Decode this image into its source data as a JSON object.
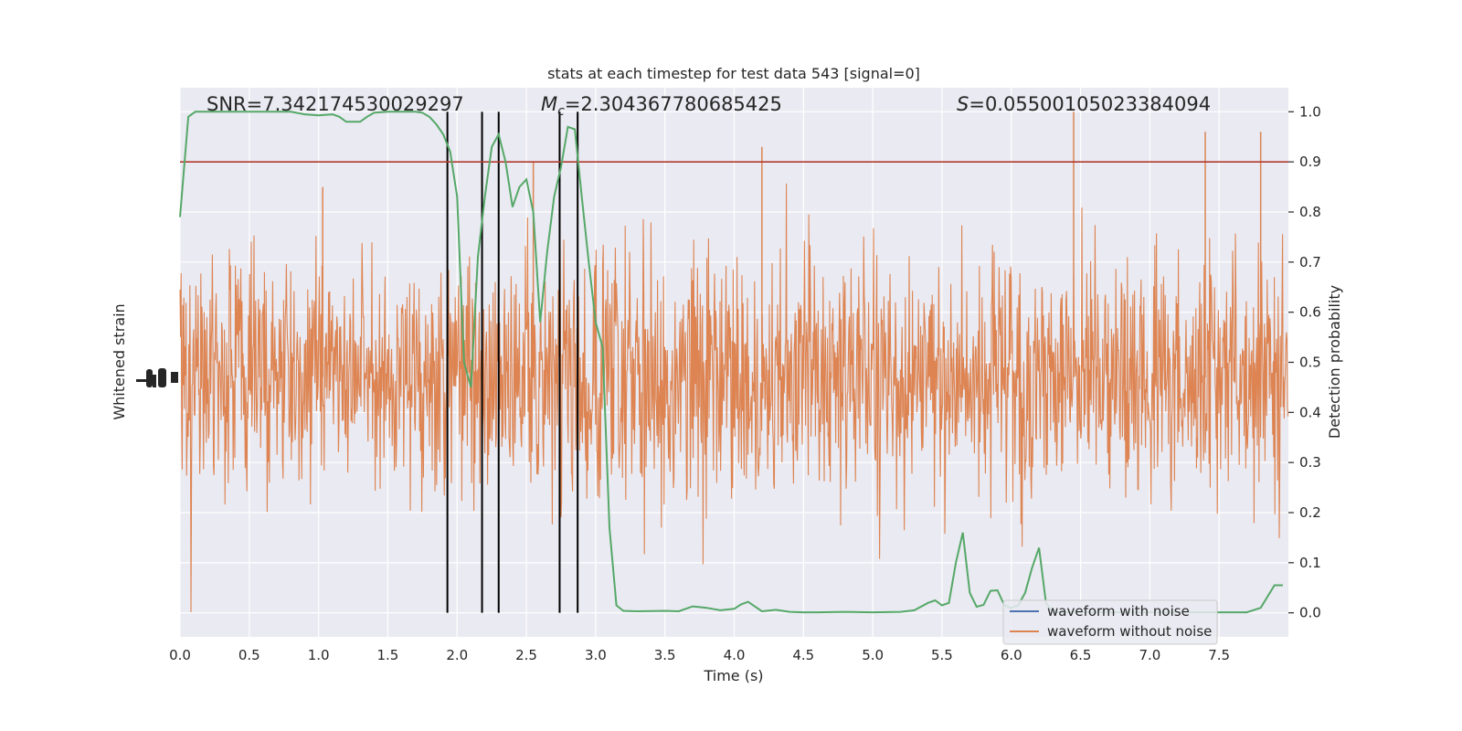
{
  "chart_data": {
    "type": "line",
    "title": "stats at each timestep for test data 543 [signal=0]",
    "xlabel": "Time (s)",
    "ylabel_left": "Whitened strain",
    "ylabel_right": "Detection probability",
    "xlim": [
      0.0,
      8.0
    ],
    "ylim_right": [
      -0.048,
      1.048
    ],
    "x_ticks": [
      "0.0",
      "0.5",
      "1.0",
      "1.5",
      "2.0",
      "2.5",
      "3.0",
      "3.5",
      "4.0",
      "4.5",
      "5.0",
      "5.5",
      "6.0",
      "6.5",
      "7.0",
      "7.5"
    ],
    "y_ticks_right": [
      "0.0",
      "0.1",
      "0.2",
      "0.3",
      "0.4",
      "0.5",
      "0.6",
      "0.7",
      "0.8",
      "0.9",
      "1.0"
    ],
    "annotations": {
      "snr": "SNR=7.342174530029297",
      "mc_symbol": "M",
      "mc_sub": "c",
      "mc_value": "=2.304367780685425",
      "s_symbol": "S",
      "s_value": "=0.05500105023384094"
    },
    "threshold": 0.9,
    "vertical_lines": [
      1.93,
      2.18,
      2.3,
      2.74,
      2.87
    ],
    "series": [
      {
        "name": "waveform with noise",
        "color": "#4c72b0"
      },
      {
        "name": "waveform without noise",
        "color": "#dd8452"
      }
    ],
    "probability": {
      "color": "#55a868",
      "x": [
        0.0,
        0.06,
        0.11,
        0.2,
        0.3,
        0.4,
        0.5,
        0.6,
        0.7,
        0.8,
        0.9,
        1.0,
        1.1,
        1.15,
        1.2,
        1.25,
        1.3,
        1.35,
        1.4,
        1.5,
        1.6,
        1.7,
        1.75,
        1.8,
        1.85,
        1.9,
        1.95,
        2.0,
        2.05,
        2.1,
        2.15,
        2.2,
        2.25,
        2.3,
        2.35,
        2.4,
        2.45,
        2.5,
        2.55,
        2.6,
        2.65,
        2.7,
        2.75,
        2.8,
        2.85,
        2.9,
        2.95,
        3.0,
        3.05,
        3.1,
        3.15,
        3.2,
        3.3,
        3.5,
        3.6,
        3.7,
        3.8,
        3.9,
        4.0,
        4.05,
        4.1,
        4.2,
        4.3,
        4.4,
        4.5,
        4.6,
        4.8,
        5.0,
        5.2,
        5.3,
        5.4,
        5.45,
        5.5,
        5.55,
        5.6,
        5.65,
        5.7,
        5.75,
        5.8,
        5.85,
        5.9,
        5.95,
        6.0,
        6.05,
        6.1,
        6.15,
        6.2,
        6.25,
        6.3,
        6.35,
        6.4,
        6.45,
        6.5,
        6.6,
        7.0,
        7.5,
        7.7,
        7.8,
        7.9,
        7.96
      ],
      "y": [
        0.79,
        0.99,
        1.0,
        1.0,
        1.0,
        1.0,
        1.0,
        1.0,
        1.0,
        1.0,
        0.995,
        0.993,
        0.995,
        0.99,
        0.98,
        0.98,
        0.98,
        0.99,
        0.998,
        1.0,
        1.0,
        1.0,
        0.998,
        0.99,
        0.975,
        0.955,
        0.92,
        0.83,
        0.5,
        0.45,
        0.71,
        0.83,
        0.93,
        0.955,
        0.9,
        0.81,
        0.85,
        0.865,
        0.8,
        0.58,
        0.72,
        0.83,
        0.89,
        0.97,
        0.965,
        0.83,
        0.7,
        0.58,
        0.53,
        0.17,
        0.015,
        0.004,
        0.003,
        0.004,
        0.003,
        0.013,
        0.01,
        0.005,
        0.008,
        0.017,
        0.022,
        0.003,
        0.006,
        0.002,
        0.001,
        0.001,
        0.002,
        0.001,
        0.002,
        0.005,
        0.02,
        0.025,
        0.015,
        0.02,
        0.1,
        0.16,
        0.04,
        0.012,
        0.016,
        0.044,
        0.045,
        0.015,
        0.01,
        0.015,
        0.04,
        0.09,
        0.13,
        0.02,
        0.002,
        0.001,
        0.001,
        0.002,
        0.001,
        0.001,
        0.001,
        0.001,
        0.001,
        0.01,
        0.055,
        0.055
      ]
    }
  }
}
